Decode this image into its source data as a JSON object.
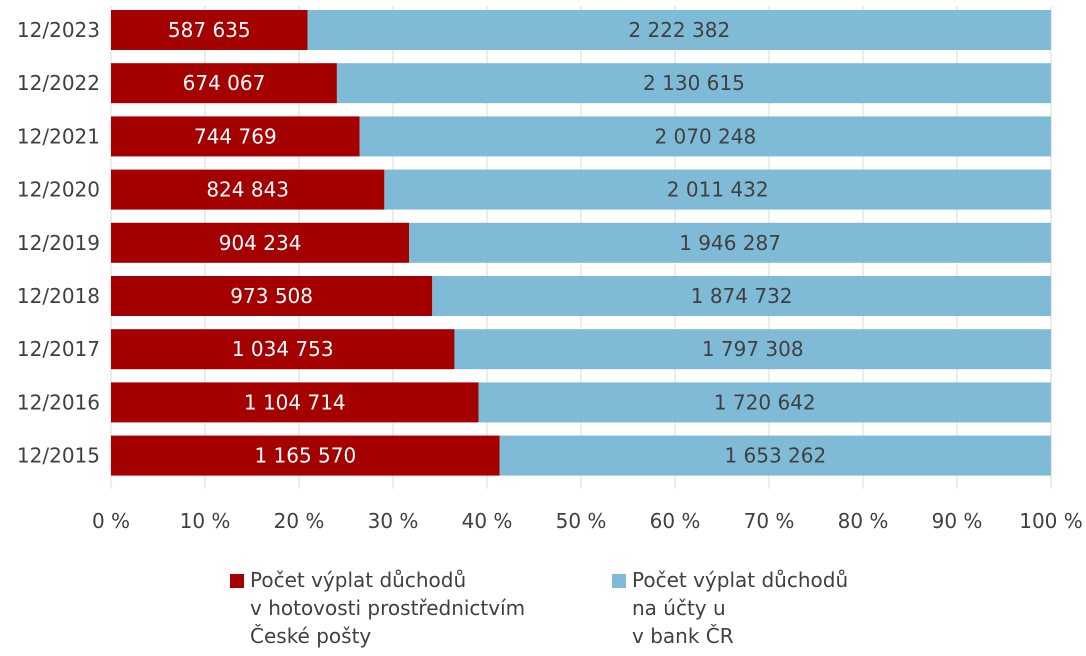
{
  "chart_data": {
    "type": "bar",
    "orientation": "horizontal",
    "stacked": "percent",
    "categories": [
      "12/2023",
      "12/2022",
      "12/2021",
      "12/2020",
      "12/2019",
      "12/2018",
      "12/2017",
      "12/2016",
      "12/2015"
    ],
    "series": [
      {
        "name": "Počet výplat důchodů v hotovosti prostřednictvím České pošty",
        "name_lines": [
          "Počet výplat důchodů",
          "v hotovosti prostřednictvím",
          "České pošty"
        ],
        "color": "#A50000",
        "label_color": "#ffffff",
        "values": [
          587635,
          674067,
          744769,
          824843,
          904234,
          973508,
          1034753,
          1104714,
          1165570
        ],
        "labels": [
          "587 635",
          "674 067",
          "744 769",
          "824 843",
          "904 234",
          "973 508",
          "1 034 753",
          "1 104 714",
          "1 165 570"
        ]
      },
      {
        "name": "Počet výplat důchodů na účty u v bank ČR",
        "name_lines": [
          "Počet výplat důchodů",
          "na účty u",
          "v bank ČR"
        ],
        "color": "#7FBBD6",
        "label_color": "#404040",
        "values": [
          2222382,
          2130615,
          2070248,
          2011432,
          1946287,
          1874732,
          1797308,
          1720642,
          1653262
        ],
        "labels": [
          "2 222 382",
          "2 130 615",
          "2 070 248",
          "2 011 432",
          "1 946 287",
          "1 874 732",
          "1 797 308",
          "1 720 642",
          "1 653 262"
        ]
      }
    ],
    "x_ticks": [
      "0 %",
      "10 %",
      "20 %",
      "30 %",
      "40 %",
      "50 %",
      "60 %",
      "70 %",
      "80 %",
      "90 %",
      "100 %"
    ],
    "xlim": [
      0,
      100
    ],
    "grid": "vertical",
    "grid_color": "#D9D9D9",
    "legend_position": "bottom"
  }
}
